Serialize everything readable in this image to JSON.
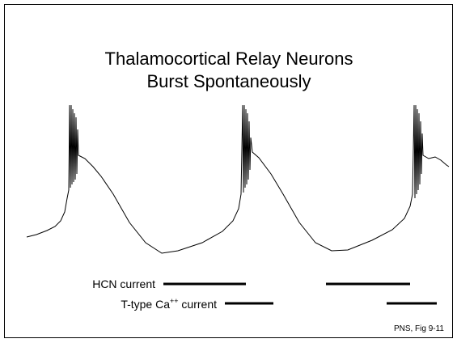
{
  "title": {
    "line1": "Thalamocortical Relay Neurons",
    "line2": "Burst Spontaneously"
  },
  "labels": {
    "hcn": "HCN current",
    "ttype": {
      "base": "T-type Ca",
      "sup": "++",
      "rest": " current"
    }
  },
  "footnote": "PNS, Fig 9-11"
}
